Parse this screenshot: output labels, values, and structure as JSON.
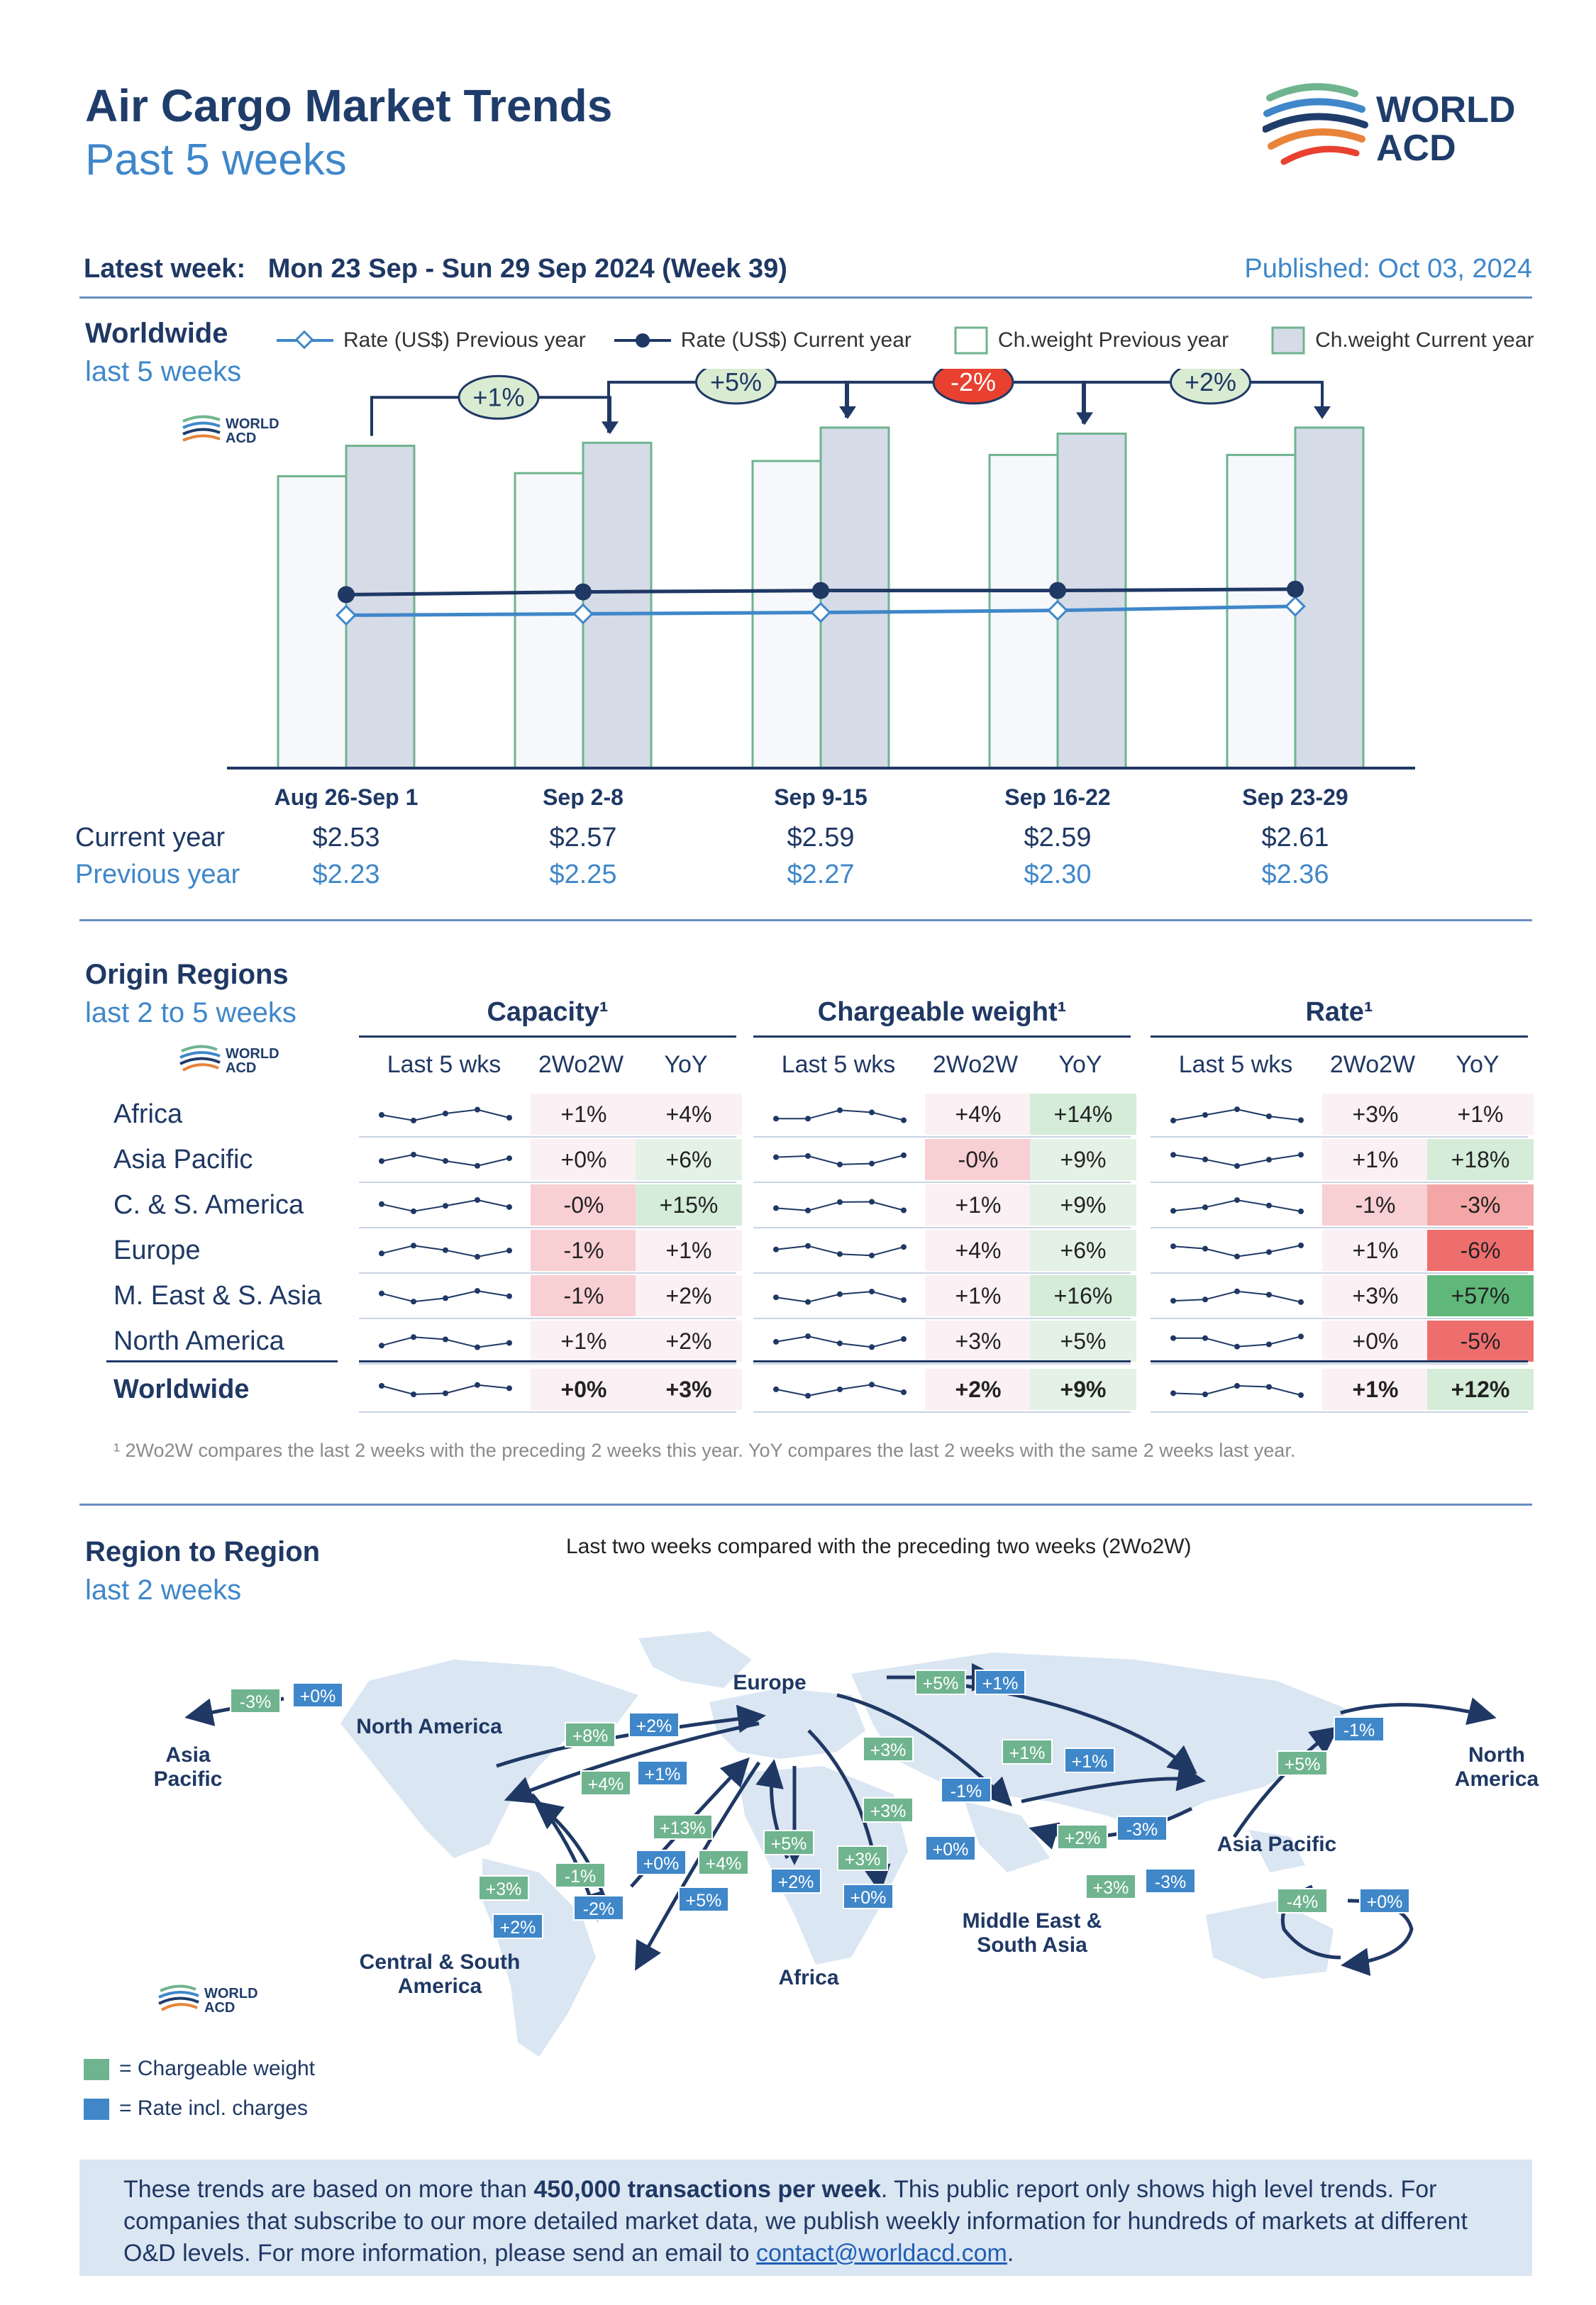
{
  "header": {
    "title": "Air Cargo Market Trends",
    "subtitle": "Past 5 weeks",
    "logo_text_1": "WORLD",
    "logo_text_2": "ACD",
    "latest_week": "Latest week:   Mon 23 Sep - Sun 29 Sep 2024 (Week 39)",
    "published": "Published: Oct 03, 2024"
  },
  "worldwide": {
    "title": "Worldwide",
    "subtitle": "last 5 weeks",
    "legend": [
      "Rate (US$) Previous year",
      "Rate (US$) Current year",
      "Ch.weight Previous year",
      "Ch.weight Current year"
    ],
    "row_current": "Current year",
    "row_previous": "Previous year",
    "changes": [
      "+1%",
      "+5%",
      "-2%",
      "+2%"
    ]
  },
  "chart_data": {
    "type": "bar",
    "categories": [
      "Aug 26-Sep 1",
      "Sep 2-8",
      "Sep 9-15",
      "Sep 16-22",
      "Sep 23-29"
    ],
    "series": [
      {
        "name": "Ch.weight Previous year",
        "values": [
          96,
          97,
          101,
          103,
          103
        ]
      },
      {
        "name": "Ch.weight Current year",
        "values": [
          106,
          107,
          112,
          110,
          112
        ]
      },
      {
        "name": "Rate (US$) Current year",
        "values": [
          2.53,
          2.57,
          2.59,
          2.59,
          2.61
        ]
      },
      {
        "name": "Rate (US$) Previous year",
        "values": [
          2.23,
          2.25,
          2.27,
          2.3,
          2.36
        ]
      }
    ],
    "rate_current_labels": [
      "$2.53",
      "$2.57",
      "$2.59",
      "$2.59",
      "$2.61"
    ],
    "rate_previous_labels": [
      "$2.23",
      "$2.25",
      "$2.27",
      "$2.30",
      "$2.36"
    ],
    "colors": {
      "rate_prev": "#3f87c9",
      "rate_curr": "#1f3864",
      "bar_border": "#6fb48f",
      "bar_curr_fill": "#d6dbe8",
      "bar_prev_fill": "#f6f8fb",
      "up": "#d9ecd2",
      "down": "#e8412f"
    }
  },
  "origin": {
    "title": "Origin Regions",
    "subtitle": "last 2 to 5 weeks",
    "groups": [
      "Capacity¹",
      "Chargeable weight¹",
      "Rate¹"
    ],
    "col_headers": [
      "Last 5 wks",
      "2Wo2W",
      "YoY"
    ],
    "rows": [
      {
        "label": "Africa",
        "cap": [
          "+1%",
          "+4%"
        ],
        "cw": [
          "+4%",
          "+14%"
        ],
        "rate": [
          "+3%",
          "+1%"
        ]
      },
      {
        "label": "Asia Pacific",
        "cap": [
          "+0%",
          "+6%"
        ],
        "cw": [
          "-0%",
          "+9%"
        ],
        "rate": [
          "+1%",
          "+18%"
        ]
      },
      {
        "label": "C. & S. America",
        "cap": [
          "-0%",
          "+15%"
        ],
        "cw": [
          "+1%",
          "+9%"
        ],
        "rate": [
          "-1%",
          "-3%"
        ]
      },
      {
        "label": "Europe",
        "cap": [
          "-1%",
          "+1%"
        ],
        "cw": [
          "+4%",
          "+6%"
        ],
        "rate": [
          "+1%",
          "-6%"
        ]
      },
      {
        "label": "M. East & S. Asia",
        "cap": [
          "-1%",
          "+2%"
        ],
        "cw": [
          "+1%",
          "+16%"
        ],
        "rate": [
          "+3%",
          "+57%"
        ]
      },
      {
        "label": "North America",
        "cap": [
          "+1%",
          "+2%"
        ],
        "cw": [
          "+3%",
          "+5%"
        ],
        "rate": [
          "+0%",
          "-5%"
        ]
      },
      {
        "label": "Worldwide",
        "cap": [
          "+0%",
          "+3%"
        ],
        "cw": [
          "+2%",
          "+9%"
        ],
        "rate": [
          "+1%",
          "+12%"
        ]
      }
    ],
    "footnote": "¹ 2Wo2W compares the last 2 weeks with the preceding 2 weeks this year. YoY compares the last 2 weeks with the same 2 weeks last year."
  },
  "region": {
    "title": "Region to Region",
    "subtitle": "last 2 weeks",
    "caption": "Last two weeks compared with the preceding two weeks (2Wo2W)",
    "labels": {
      "asia_pacific_left": "Asia Pacific",
      "north_america": "North America",
      "europe": "Europe",
      "north_america_right": "North America",
      "asia_pacific": "Asia Pacific",
      "central_south_america": "Central & South America",
      "africa": "Africa",
      "middle_east": "Middle East & South Asia"
    },
    "legend_cw": "=  Chargeable weight",
    "legend_rate": "=  Rate incl. charges"
  },
  "info": {
    "text_1": "These trends are based on more than ",
    "text_bold": "450,000 transactions per week",
    "text_2": ". This public report only shows high level trends. For companies that subscribe to our more detailed market data, we publish weekly information for hundreds of markets at different O&D levels. For more information, please send an email to ",
    "email": "contact@worldacd.com",
    "text_3": "."
  }
}
